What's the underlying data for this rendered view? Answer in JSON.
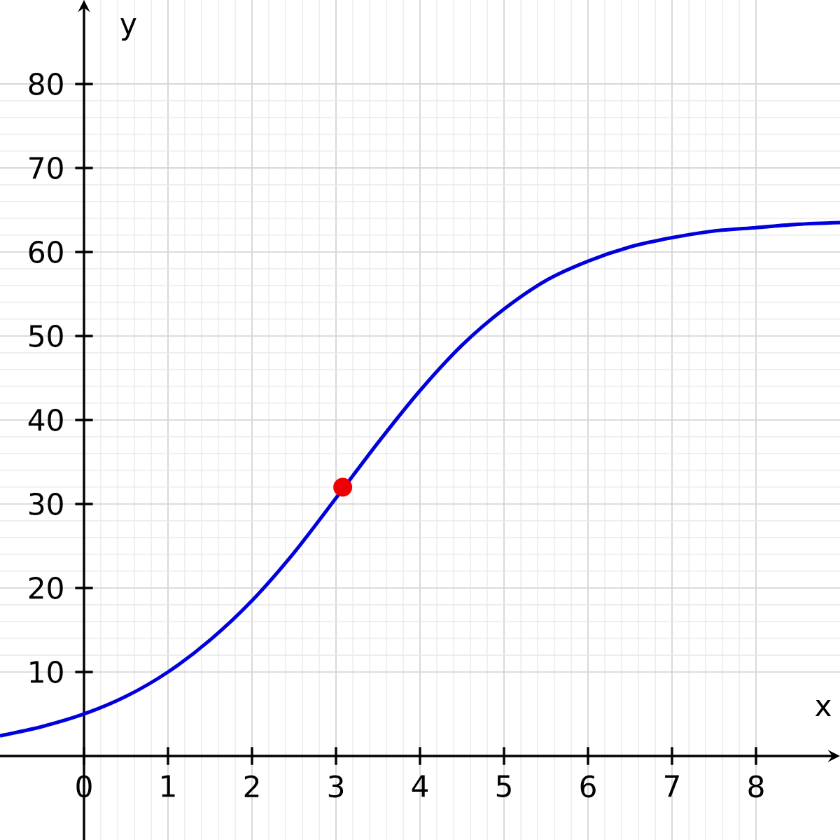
{
  "chart_data": {
    "type": "line",
    "xlabel": "x",
    "ylabel": "y",
    "xlim": [
      -1,
      9
    ],
    "ylim": [
      -10,
      90
    ],
    "xticks": [
      0,
      1,
      2,
      3,
      4,
      5,
      6,
      7,
      8
    ],
    "yticks": [
      10,
      20,
      30,
      40,
      50,
      60,
      70,
      80
    ],
    "grid": true,
    "series": [
      {
        "type": "line",
        "color": "#0000dd",
        "x": [
          -1,
          -0.5,
          0,
          0.5,
          1,
          1.5,
          2,
          2.5,
          3,
          3.5,
          4,
          4.5,
          5,
          5.5,
          6,
          6.5,
          7,
          7.5,
          8,
          8.5,
          9
        ],
        "values": [
          2.4,
          3.5,
          5.0,
          7.1,
          10.0,
          13.8,
          18.5,
          24.2,
          30.7,
          37.3,
          43.5,
          48.9,
          53.2,
          56.6,
          58.9,
          60.6,
          61.7,
          62.5,
          62.9,
          63.3,
          63.5
        ]
      },
      {
        "type": "scatter",
        "color": "#ee0000",
        "marker": "circle",
        "x": [
          3.08
        ],
        "values": [
          32
        ]
      }
    ]
  }
}
